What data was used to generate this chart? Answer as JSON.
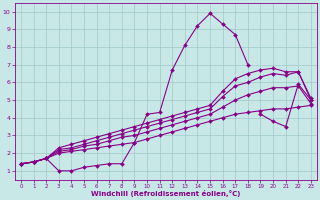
{
  "xlabel": "Windchill (Refroidissement éolien,°C)",
  "bg_color": "#c8e8e8",
  "grid_color": "#a0c8c8",
  "line_color": "#880088",
  "xlim": [
    -0.5,
    23.5
  ],
  "ylim": [
    0.5,
    10.5
  ],
  "xticks": [
    0,
    1,
    2,
    3,
    4,
    5,
    6,
    7,
    8,
    9,
    10,
    11,
    12,
    13,
    14,
    15,
    16,
    17,
    18,
    19,
    20,
    21,
    22,
    23
  ],
  "yticks": [
    1,
    2,
    3,
    4,
    5,
    6,
    7,
    8,
    9,
    10
  ],
  "lines": [
    {
      "x": [
        0,
        1,
        2,
        3,
        4,
        5,
        6,
        7,
        8,
        9,
        10,
        11,
        12,
        13,
        14,
        15,
        16,
        17,
        18,
        19,
        20,
        21,
        22,
        23
      ],
      "y": [
        1.4,
        1.5,
        1.7,
        1.0,
        1.0,
        1.2,
        1.3,
        1.4,
        1.4,
        2.6,
        4.2,
        4.3,
        6.7,
        8.1,
        9.2,
        9.9,
        9.3,
        8.7,
        7.0,
        null,
        null,
        null,
        null,
        null
      ]
    },
    {
      "x": [
        0,
        1,
        2,
        3,
        4,
        5,
        6,
        7,
        8,
        9,
        10,
        11,
        12,
        13,
        14,
        15,
        16,
        17,
        18,
        19,
        20,
        21,
        22,
        23
      ],
      "y": [
        null,
        null,
        null,
        null,
        null,
        null,
        null,
        null,
        null,
        null,
        null,
        null,
        null,
        null,
        null,
        null,
        null,
        null,
        null,
        4.2,
        3.8,
        3.5,
        5.9,
        5.0
      ]
    },
    {
      "x": [
        0,
        1,
        2,
        3,
        4,
        5,
        6,
        7,
        8,
        9,
        10,
        11,
        12,
        13,
        14,
        15,
        16,
        17,
        18,
        19,
        20,
        21,
        22,
        23
      ],
      "y": [
        1.4,
        1.5,
        1.7,
        2.0,
        2.1,
        2.2,
        2.3,
        2.4,
        2.5,
        2.6,
        2.8,
        3.0,
        3.2,
        3.4,
        3.6,
        3.8,
        4.0,
        4.2,
        4.3,
        4.4,
        4.5,
        4.5,
        4.6,
        4.7
      ]
    },
    {
      "x": [
        0,
        1,
        2,
        3,
        4,
        5,
        6,
        7,
        8,
        9,
        10,
        11,
        12,
        13,
        14,
        15,
        16,
        17,
        18,
        19,
        20,
        21,
        22,
        23
      ],
      "y": [
        1.4,
        1.5,
        1.7,
        2.1,
        2.2,
        2.4,
        2.5,
        2.7,
        2.9,
        3.0,
        3.2,
        3.4,
        3.6,
        3.8,
        4.0,
        4.2,
        4.6,
        5.0,
        5.3,
        5.5,
        5.7,
        5.7,
        5.8,
        4.8
      ]
    },
    {
      "x": [
        0,
        1,
        2,
        3,
        4,
        5,
        6,
        7,
        8,
        9,
        10,
        11,
        12,
        13,
        14,
        15,
        16,
        17,
        18,
        19,
        20,
        21,
        22,
        23
      ],
      "y": [
        1.4,
        1.5,
        1.7,
        2.2,
        2.3,
        2.5,
        2.7,
        2.9,
        3.1,
        3.3,
        3.5,
        3.7,
        3.9,
        4.1,
        4.3,
        4.5,
        5.2,
        5.8,
        6.0,
        6.3,
        6.5,
        6.4,
        6.6,
        5.0
      ]
    },
    {
      "x": [
        0,
        1,
        2,
        3,
        4,
        5,
        6,
        7,
        8,
        9,
        10,
        11,
        12,
        13,
        14,
        15,
        16,
        17,
        18,
        19,
        20,
        21,
        22,
        23
      ],
      "y": [
        1.4,
        1.5,
        1.7,
        2.3,
        2.5,
        2.7,
        2.9,
        3.1,
        3.3,
        3.5,
        3.7,
        3.9,
        4.1,
        4.3,
        4.5,
        4.7,
        5.5,
        6.2,
        6.5,
        6.7,
        6.8,
        6.6,
        6.6,
        5.1
      ]
    }
  ]
}
